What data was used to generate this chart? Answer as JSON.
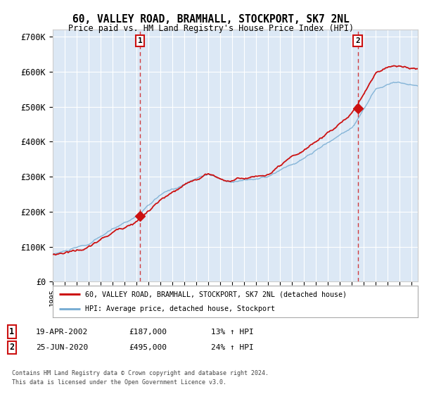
{
  "title": "60, VALLEY ROAD, BRAMHALL, STOCKPORT, SK7 2NL",
  "subtitle": "Price paid vs. HM Land Registry's House Price Index (HPI)",
  "ylabel_ticks": [
    "£0",
    "£100K",
    "£200K",
    "£300K",
    "£400K",
    "£500K",
    "£600K",
    "£700K"
  ],
  "ytick_values": [
    0,
    100000,
    200000,
    300000,
    400000,
    500000,
    600000,
    700000
  ],
  "ylim": [
    0,
    720000
  ],
  "xlim_start": 1995.0,
  "xlim_end": 2025.5,
  "background_color": "#ffffff",
  "plot_bg_color": "#dce8f5",
  "grid_color": "#ffffff",
  "hpi_line_color": "#7bafd4",
  "price_line_color": "#cc1111",
  "sale1_x": 2002.3,
  "sale1_y": 187000,
  "sale2_x": 2020.48,
  "sale2_y": 495000,
  "legend_label1": "60, VALLEY ROAD, BRAMHALL, STOCKPORT, SK7 2NL (detached house)",
  "legend_label2": "HPI: Average price, detached house, Stockport",
  "annotation1_label": "1",
  "annotation2_label": "2",
  "footer1": "Contains HM Land Registry data © Crown copyright and database right 2024.",
  "footer2": "This data is licensed under the Open Government Licence v3.0.",
  "table_row1": [
    "1",
    "19-APR-2002",
    "£187,000",
    "13% ↑ HPI"
  ],
  "table_row2": [
    "2",
    "25-JUN-2020",
    "£495,000",
    "24% ↑ HPI"
  ]
}
